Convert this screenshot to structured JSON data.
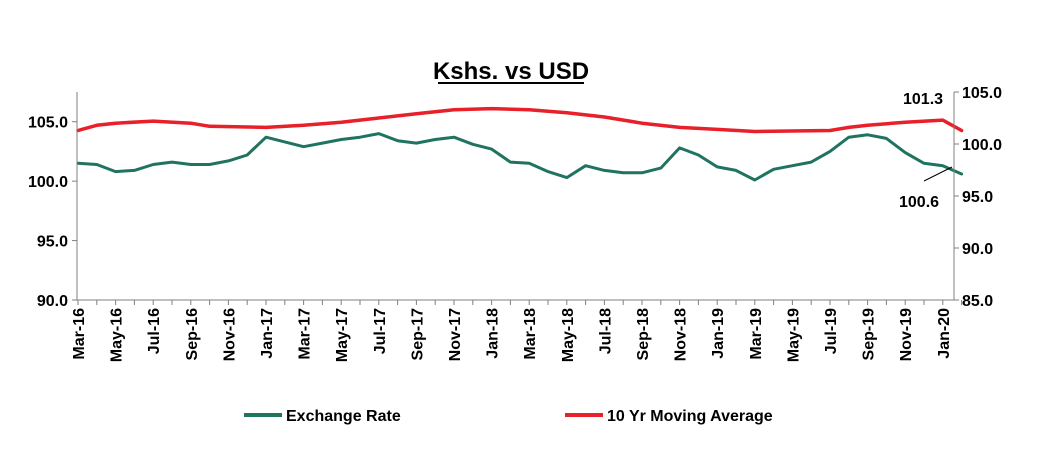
{
  "chart_data": {
    "type": "line",
    "title": "Kshs. vs USD",
    "xlabel": "",
    "ylabel": "",
    "grid": false,
    "legend_position": "bottom",
    "x_tick_labels": [
      "Mar-16",
      "May-16",
      "Jul-16",
      "Sep-16",
      "Nov-16",
      "Jan-17",
      "Mar-17",
      "May-17",
      "Jul-17",
      "Sep-17",
      "Nov-17",
      "Jan-18",
      "Mar-18",
      "May-18",
      "Jul-18",
      "Sep-18",
      "Nov-18",
      "Jan-19",
      "Mar-19",
      "May-19",
      "Jul-19",
      "Sep-19",
      "Nov-19",
      "Jan-20"
    ],
    "y_left": {
      "ylim": [
        90,
        107.5
      ],
      "ticks": [
        "90.0",
        "95.0",
        "100.0",
        "105.0"
      ]
    },
    "y_right": {
      "ylim": [
        85,
        105
      ],
      "ticks": [
        "85.0",
        "90.0",
        "95.0",
        "100.0",
        "105.0"
      ]
    },
    "series": [
      {
        "name": "Exchange Rate",
        "color": "#1f7360",
        "axis": "left",
        "points": [
          [
            "Mar-16",
            101.5
          ],
          [
            "Apr-16",
            101.4
          ],
          [
            "May-16",
            100.8
          ],
          [
            "Jun-16",
            100.9
          ],
          [
            "Jul-16",
            101.4
          ],
          [
            "Aug-16",
            101.6
          ],
          [
            "Sep-16",
            101.4
          ],
          [
            "Oct-16",
            101.4
          ],
          [
            "Nov-16",
            101.7
          ],
          [
            "Dec-16",
            102.2
          ],
          [
            "Jan-17",
            103.7
          ],
          [
            "Feb-17",
            103.3
          ],
          [
            "Mar-17",
            102.9
          ],
          [
            "Apr-17",
            103.2
          ],
          [
            "May-17",
            103.5
          ],
          [
            "Jun-17",
            103.7
          ],
          [
            "Jul-17",
            104.0
          ],
          [
            "Aug-17",
            103.4
          ],
          [
            "Sep-17",
            103.2
          ],
          [
            "Oct-17",
            103.5
          ],
          [
            "Nov-17",
            103.7
          ],
          [
            "Dec-17",
            103.1
          ],
          [
            "Jan-18",
            102.7
          ],
          [
            "Feb-18",
            101.6
          ],
          [
            "Mar-18",
            101.5
          ],
          [
            "Apr-18",
            100.8
          ],
          [
            "May-18",
            100.3
          ],
          [
            "Jun-18",
            101.3
          ],
          [
            "Jul-18",
            100.9
          ],
          [
            "Aug-18",
            100.7
          ],
          [
            "Sep-18",
            100.7
          ],
          [
            "Oct-18",
            101.1
          ],
          [
            "Nov-18",
            102.8
          ],
          [
            "Dec-18",
            102.2
          ],
          [
            "Jan-19",
            101.2
          ],
          [
            "Feb-19",
            100.9
          ],
          [
            "Mar-19",
            100.1
          ],
          [
            "Apr-19",
            101.0
          ],
          [
            "May-19",
            101.3
          ],
          [
            "Jun-19",
            101.6
          ],
          [
            "Jul-19",
            102.5
          ],
          [
            "Aug-19",
            103.7
          ],
          [
            "Sep-19",
            103.9
          ],
          [
            "Oct-19",
            103.6
          ],
          [
            "Nov-19",
            102.4
          ],
          [
            "Dec-19",
            101.5
          ],
          [
            "Jan-20",
            101.3
          ],
          [
            "Feb-20",
            100.6
          ]
        ]
      },
      {
        "name": "10 Yr Moving Average",
        "color": "#e8202a",
        "axis": "right",
        "points": [
          [
            "Mar-16",
            101.3
          ],
          [
            "Apr-16",
            101.8
          ],
          [
            "May-16",
            102.0
          ],
          [
            "Jul-16",
            102.2
          ],
          [
            "Sep-16",
            102.0
          ],
          [
            "Oct-16",
            101.7
          ],
          [
            "Jan-17",
            101.6
          ],
          [
            "Mar-17",
            101.8
          ],
          [
            "May-17",
            102.1
          ],
          [
            "Jul-17",
            102.5
          ],
          [
            "Sep-17",
            102.9
          ],
          [
            "Nov-17",
            103.3
          ],
          [
            "Jan-18",
            103.4
          ],
          [
            "Mar-18",
            103.3
          ],
          [
            "May-18",
            103.0
          ],
          [
            "Jul-18",
            102.6
          ],
          [
            "Sep-18",
            102.0
          ],
          [
            "Nov-18",
            101.6
          ],
          [
            "Jan-19",
            101.4
          ],
          [
            "Mar-19",
            101.2
          ],
          [
            "Jul-19",
            101.3
          ],
          [
            "Aug-19",
            101.6
          ],
          [
            "Sep-19",
            101.8
          ],
          [
            "Nov-19",
            102.1
          ],
          [
            "Jan-20",
            102.3
          ],
          [
            "Feb-20",
            101.3
          ]
        ]
      }
    ],
    "annotations": [
      {
        "text": "101.3",
        "series": "10 Yr Moving Average"
      },
      {
        "text": "100.6",
        "series": "Exchange Rate"
      }
    ]
  },
  "legend": [
    {
      "label": "Exchange Rate",
      "color": "#1f7360"
    },
    {
      "label": "10 Yr Moving Average",
      "color": "#e8202a"
    }
  ]
}
